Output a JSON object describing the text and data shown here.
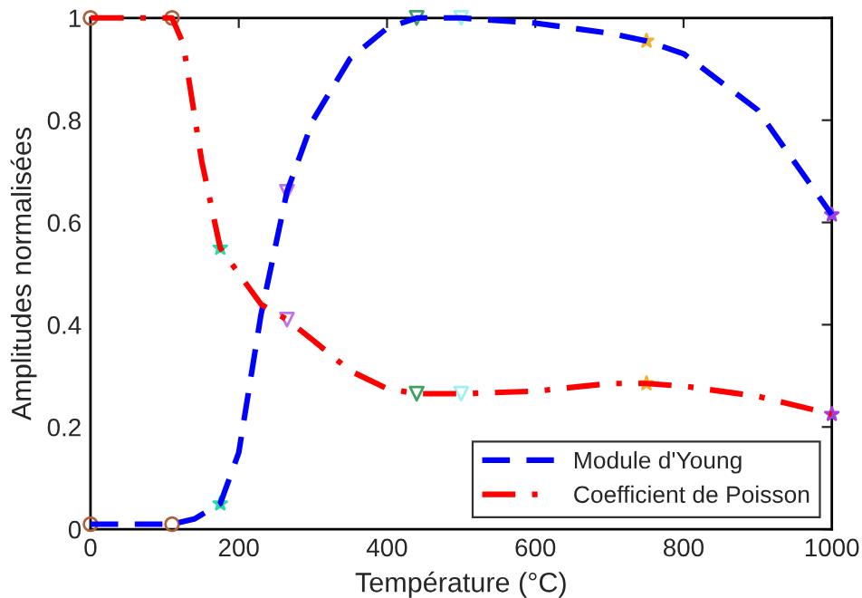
{
  "chart_data": {
    "type": "line",
    "xlabel": "Température (°C)",
    "ylabel": "Amplitudes normalisées",
    "xlim": [
      0,
      1000
    ],
    "xticks": [
      0,
      200,
      400,
      600,
      800,
      1000
    ],
    "ylim": [
      0,
      1
    ],
    "yticks": [
      0,
      0.2,
      0.4,
      0.6,
      0.8,
      1
    ],
    "grid": false,
    "legend": "bottom right",
    "series": [
      {
        "name": "Module d'Young",
        "color": "#0000ff",
        "line_style": "dashed",
        "marker": "none",
        "x": [
          0,
          110,
          140,
          175,
          200,
          230,
          265,
          300,
          350,
          400,
          440,
          500,
          600,
          700,
          750,
          800,
          900,
          1000
        ],
        "values": [
          0.01,
          0.01,
          0.02,
          0.05,
          0.15,
          0.42,
          0.66,
          0.8,
          0.92,
          0.98,
          1.0,
          1.0,
          0.99,
          0.97,
          0.955,
          0.93,
          0.82,
          0.615
        ]
      },
      {
        "name": "Coefficient de Poisson",
        "color": "#ff0000",
        "line_style": "dashdot",
        "marker": "none",
        "x": [
          0,
          110,
          125,
          150,
          175,
          200,
          230,
          265,
          300,
          350,
          400,
          440,
          500,
          600,
          700,
          750,
          800,
          900,
          1000
        ],
        "values": [
          1.0,
          1.0,
          0.95,
          0.72,
          0.55,
          0.5,
          0.44,
          0.41,
          0.37,
          0.31,
          0.275,
          0.265,
          0.265,
          0.27,
          0.285,
          0.285,
          0.28,
          0.26,
          0.225
        ]
      },
      {
        "type": "scatter",
        "color": "#b0603a",
        "marker": "circle",
        "x": [
          0,
          0
        ],
        "values": [
          0.01,
          1.0
        ]
      },
      {
        "type": "scatter",
        "color": "#b0603a",
        "marker": "circle",
        "x": [
          110,
          110
        ],
        "values": [
          0.01,
          1.0
        ]
      },
      {
        "type": "scatter",
        "color": "#20e0a0",
        "marker": "star",
        "x": [
          175,
          175
        ],
        "values": [
          0.05,
          0.55
        ]
      },
      {
        "type": "scatter",
        "color": "#c070f0",
        "marker": "triangle",
        "x": [
          265,
          265
        ],
        "values": [
          0.66,
          0.41
        ]
      },
      {
        "type": "scatter",
        "color": "#40a060",
        "marker": "triangle",
        "x": [
          440,
          440
        ],
        "values": [
          1.0,
          0.265
        ]
      },
      {
        "type": "scatter",
        "color": "#a0f0f0",
        "marker": "triangle",
        "x": [
          500,
          500
        ],
        "values": [
          1.0,
          0.265
        ]
      },
      {
        "type": "scatter",
        "color": "#f0b030",
        "marker": "star",
        "x": [
          750,
          750
        ],
        "values": [
          0.955,
          0.285
        ]
      },
      {
        "type": "scatter",
        "color": "#a040e0",
        "marker": "star",
        "x": [
          1000,
          1000
        ],
        "values": [
          0.615,
          0.225
        ]
      }
    ]
  }
}
